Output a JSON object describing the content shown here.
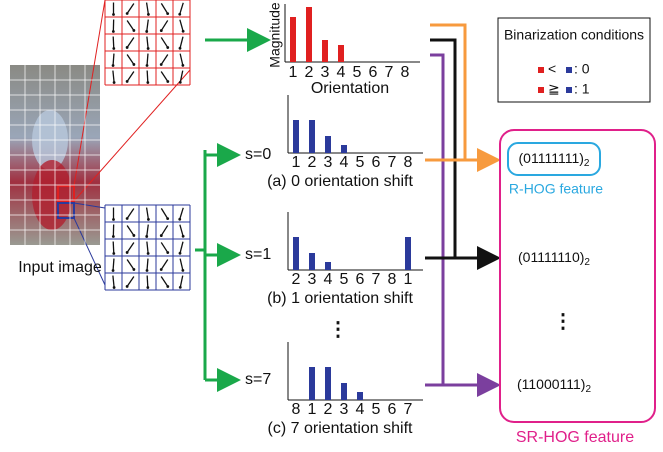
{
  "input_label": "Input image",
  "top_histogram": {
    "y_label": "Magnitude",
    "x_label": "Orientation",
    "categories": [
      "1",
      "2",
      "3",
      "4",
      "5",
      "6",
      "7",
      "8"
    ],
    "values": [
      45,
      55,
      22,
      17,
      0,
      0,
      0,
      0
    ]
  },
  "shifts": [
    {
      "label": "s=0",
      "categories": [
        "1",
        "2",
        "3",
        "4",
        "5",
        "6",
        "7",
        "8"
      ],
      "values": [
        33,
        33,
        17,
        8,
        0,
        0,
        0,
        0
      ],
      "caption": "(a) 0 orientation shift"
    },
    {
      "label": "s=1",
      "categories": [
        "2",
        "3",
        "4",
        "5",
        "6",
        "7",
        "8",
        "1"
      ],
      "values": [
        33,
        17,
        8,
        0,
        0,
        0,
        0,
        33
      ],
      "caption": "(b) 1 orientation shift"
    },
    {
      "label": "s=7",
      "categories": [
        "8",
        "1",
        "2",
        "3",
        "4",
        "5",
        "6",
        "7"
      ],
      "values": [
        0,
        33,
        33,
        17,
        8,
        0,
        0,
        0
      ],
      "caption": "(c) 7 orientation shift"
    }
  ],
  "shift_ellipsis": "⋮",
  "legend": {
    "title": "Binarization conditions",
    "rows": [
      {
        "relation": "<",
        "result": ": 0"
      },
      {
        "relation": "≧",
        "result": ": 1"
      }
    ]
  },
  "features": [
    {
      "code": "(01111111)",
      "base": "2"
    },
    {
      "code": "(01111110)",
      "base": "2"
    },
    {
      "code": "(11000111)",
      "base": "2"
    }
  ],
  "feature_ellipsis": "⋮",
  "r_hog_label": "R-HOG feature",
  "sr_hog_label": "SR-HOG feature"
}
